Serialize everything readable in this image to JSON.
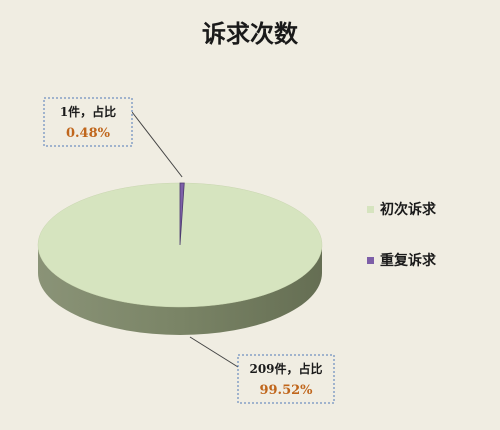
{
  "chart_data": {
    "type": "pie",
    "title": "诉求次数",
    "categories": [
      "初次诉求",
      "重复诉求"
    ],
    "values": [
      209,
      1
    ],
    "labels": [
      {
        "count_text": "209件，占比",
        "percent_text": "99.52%"
      },
      {
        "count_text": "1件，占比",
        "percent_text": "0.48%"
      }
    ],
    "colors": [
      "#d6e4bf",
      "#7d5fa8"
    ],
    "legend_position": "right",
    "three_d": true
  },
  "style": {
    "percent_color": "#c0661c",
    "callout_border": "#4f79b8"
  }
}
